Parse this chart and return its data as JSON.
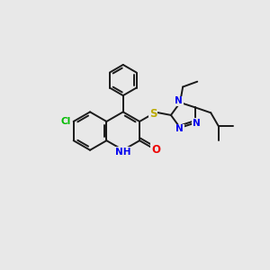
{
  "background_color": "#e8e8e8",
  "bond_color": "#1a1a1a",
  "bond_width": 1.4,
  "atom_colors": {
    "C": "#1a1a1a",
    "N": "#0000ee",
    "O": "#ee0000",
    "S": "#bbaa00",
    "Cl": "#00bb00",
    "H": "#0000ee"
  },
  "font_size": 7.5,
  "figsize": [
    3.0,
    3.0
  ],
  "dpi": 100
}
